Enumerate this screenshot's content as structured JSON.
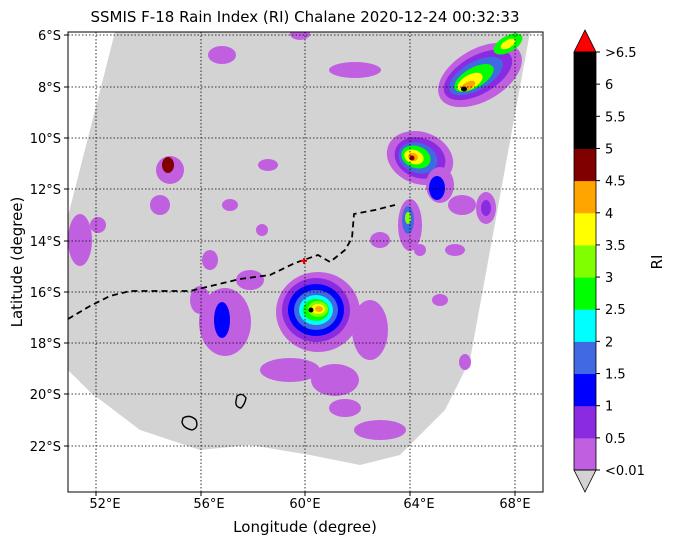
{
  "title": "SSMIS F-18 Rain Index (RI) Chalane 2020-12-24 00:32:33",
  "axes": {
    "xlabel": "Longitude (degree)",
    "ylabel": "Latitude (degree)",
    "x_ticks": [
      "52°E",
      "56°E",
      "60°E",
      "64°E",
      "68°E"
    ],
    "y_ticks": [
      "6°S",
      "8°S",
      "10°S",
      "12°S",
      "14°S",
      "16°S",
      "18°S",
      "20°S",
      "22°S"
    ]
  },
  "colorbar": {
    "label": "RI",
    "tick_labels": [
      "<0.01",
      "0.5",
      "1",
      "1.5",
      "2",
      "2.5",
      "3",
      "3.5",
      "4",
      "4.5",
      "5",
      "5.5",
      "6",
      ">6.5"
    ],
    "colors": [
      "#c060e0",
      "#8a2be2",
      "#0000ff",
      "#4169e1",
      "#00ffff",
      "#00ff00",
      "#7fff00",
      "#ffff00",
      "#ffa500",
      "#800000",
      "#000000",
      "#000000",
      "#000000"
    ],
    "over_color": "#ff0000",
    "under_color": "#d3d3d3"
  },
  "storm_center": {
    "lon": 60.0,
    "lat": -14.9,
    "color": "#ff0000"
  },
  "swath_color": "#d3d3d3",
  "features": {
    "storm_track": {
      "style": "dashed",
      "color": "#000000"
    },
    "coastline": {
      "color": "#000000"
    }
  }
}
